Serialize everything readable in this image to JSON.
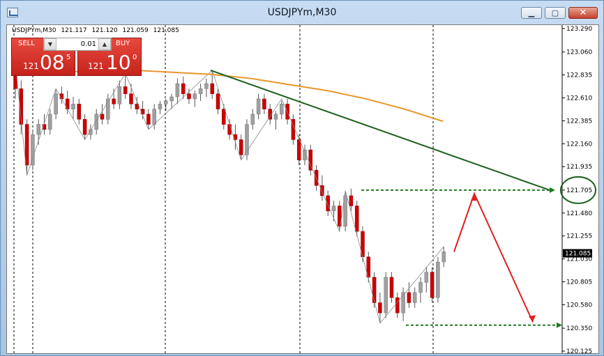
{
  "window": {
    "title": "USDJPYm,M30",
    "minimize_glyph": "▁",
    "maximize_glyph": "▢",
    "close_glyph": "✕"
  },
  "symbol_info": {
    "label": "USDJPYm,M30",
    "open": "121.117",
    "high": "121.120",
    "low": "121.059",
    "close": "121.085"
  },
  "trade_panel": {
    "sell_label": "SELL",
    "buy_label": "BUY",
    "lot_value": "0.01",
    "sell_price": {
      "prefix": "121",
      "main": "08",
      "sup": "5"
    },
    "buy_price": {
      "prefix": "121",
      "main": "10",
      "sup": "0"
    }
  },
  "colors": {
    "bull": "#a0a0a0",
    "bear": "#cc0000",
    "wick": "#555555",
    "ma": "#e8962a",
    "trendline": "#1d5e1d",
    "level": "#1f7a1f",
    "forecast": "#e02020",
    "price_tag": "#000000"
  },
  "chart_data": {
    "type": "candlestick",
    "y_axis": {
      "ylim": [
        120.125,
        123.29
      ],
      "ticks": [
        "123.290",
        "123.060",
        "122.835",
        "122.610",
        "122.385",
        "122.160",
        "121.935",
        "121.705",
        "121.480",
        "121.255",
        "121.030",
        "120.805",
        "120.580",
        "120.350",
        "120.125"
      ]
    },
    "current_price": "121.085",
    "candles": [
      [
        122.85,
        122.95,
        122.6,
        122.7
      ],
      [
        122.7,
        122.78,
        122.25,
        122.35
      ],
      [
        122.35,
        122.4,
        121.85,
        121.95
      ],
      [
        121.95,
        122.3,
        121.9,
        122.25
      ],
      [
        122.25,
        122.4,
        122.15,
        122.35
      ],
      [
        122.35,
        122.45,
        122.25,
        122.3
      ],
      [
        122.3,
        122.5,
        122.25,
        122.45
      ],
      [
        122.45,
        122.7,
        122.4,
        122.65
      ],
      [
        122.65,
        122.72,
        122.55,
        122.6
      ],
      [
        122.6,
        122.68,
        122.45,
        122.5
      ],
      [
        122.5,
        122.62,
        122.4,
        122.55
      ],
      [
        122.55,
        122.6,
        122.35,
        122.4
      ],
      [
        122.4,
        122.45,
        122.2,
        122.25
      ],
      [
        122.25,
        122.35,
        122.2,
        122.3
      ],
      [
        122.3,
        122.5,
        122.25,
        122.45
      ],
      [
        122.45,
        122.55,
        122.35,
        122.4
      ],
      [
        122.4,
        122.65,
        122.35,
        122.6
      ],
      [
        122.6,
        122.7,
        122.5,
        122.55
      ],
      [
        122.55,
        122.78,
        122.5,
        122.72
      ],
      [
        122.72,
        122.85,
        122.6,
        122.65
      ],
      [
        122.65,
        122.75,
        122.5,
        122.55
      ],
      [
        122.55,
        122.62,
        122.45,
        122.5
      ],
      [
        122.5,
        122.58,
        122.4,
        122.45
      ],
      [
        122.45,
        122.5,
        122.3,
        122.35
      ],
      [
        122.35,
        122.55,
        122.3,
        122.5
      ],
      [
        122.5,
        122.58,
        122.45,
        122.55
      ],
      [
        122.55,
        122.6,
        122.48,
        122.58
      ],
      [
        122.58,
        122.65,
        122.5,
        122.62
      ],
      [
        122.62,
        122.8,
        122.55,
        122.75
      ],
      [
        122.75,
        122.82,
        122.6,
        122.65
      ],
      [
        122.65,
        122.7,
        122.55,
        122.6
      ],
      [
        122.6,
        122.68,
        122.52,
        122.65
      ],
      [
        122.65,
        122.75,
        122.58,
        122.7
      ],
      [
        122.7,
        122.8,
        122.62,
        122.75
      ],
      [
        122.75,
        122.88,
        122.6,
        122.65
      ],
      [
        122.65,
        122.7,
        122.45,
        122.5
      ],
      [
        122.5,
        122.55,
        122.3,
        122.35
      ],
      [
        122.35,
        122.4,
        122.2,
        122.25
      ],
      [
        122.25,
        122.35,
        122.1,
        122.2
      ],
      [
        122.2,
        122.25,
        122.0,
        122.05
      ],
      [
        122.05,
        122.4,
        122.0,
        122.35
      ],
      [
        122.35,
        122.5,
        122.3,
        122.45
      ],
      [
        122.45,
        122.65,
        122.4,
        122.6
      ],
      [
        122.6,
        122.65,
        122.45,
        122.5
      ],
      [
        122.5,
        122.55,
        122.35,
        122.4
      ],
      [
        122.4,
        122.48,
        122.3,
        122.45
      ],
      [
        122.45,
        122.58,
        122.4,
        122.55
      ],
      [
        122.55,
        122.6,
        122.35,
        122.4
      ],
      [
        122.4,
        122.45,
        122.15,
        122.2
      ],
      [
        122.2,
        122.25,
        121.95,
        122.0
      ],
      [
        122.0,
        122.15,
        121.95,
        122.1
      ],
      [
        122.1,
        122.15,
        121.85,
        121.9
      ],
      [
        121.9,
        121.95,
        121.7,
        121.75
      ],
      [
        121.75,
        121.85,
        121.6,
        121.65
      ],
      [
        121.65,
        121.7,
        121.45,
        121.5
      ],
      [
        121.5,
        121.6,
        121.4,
        121.55
      ],
      [
        121.55,
        121.6,
        121.3,
        121.35
      ],
      [
        121.35,
        121.7,
        121.3,
        121.65
      ],
      [
        121.65,
        121.72,
        121.5,
        121.55
      ],
      [
        121.55,
        121.6,
        121.25,
        121.3
      ],
      [
        121.3,
        121.35,
        121.0,
        121.05
      ],
      [
        121.05,
        121.1,
        120.8,
        120.85
      ],
      [
        120.85,
        120.9,
        120.55,
        120.6
      ],
      [
        120.6,
        120.7,
        120.4,
        120.5
      ],
      [
        120.5,
        120.9,
        120.45,
        120.85
      ],
      [
        120.85,
        120.9,
        120.6,
        120.65
      ],
      [
        120.65,
        120.7,
        120.45,
        120.5
      ],
      [
        120.5,
        120.75,
        120.42,
        120.7
      ],
      [
        120.7,
        120.8,
        120.55,
        120.6
      ],
      [
        120.6,
        120.75,
        120.55,
        120.7
      ],
      [
        120.7,
        120.85,
        120.6,
        120.8
      ],
      [
        120.8,
        120.95,
        120.7,
        120.9
      ],
      [
        120.9,
        120.95,
        120.6,
        120.65
      ],
      [
        120.65,
        121.05,
        120.6,
        121.0
      ],
      [
        121.0,
        121.15,
        120.95,
        121.1
      ]
    ],
    "moving_average": [
      [
        122.83,
        122.85
      ],
      [
        122.85,
        122.87
      ],
      [
        122.89,
        122.88
      ],
      [
        122.88,
        122.87
      ],
      [
        122.86,
        122.84
      ],
      [
        122.84,
        122.81
      ],
      [
        122.8,
        122.76
      ],
      [
        122.74,
        122.7
      ],
      [
        122.68,
        122.63
      ],
      [
        122.6,
        122.55
      ],
      [
        122.5,
        122.44
      ],
      [
        122.38,
        122.32
      ]
    ],
    "trendline": {
      "from": [
        122.88
      ],
      "to": [
        121.705
      ]
    },
    "levels": [
      "121.705",
      "120.380"
    ],
    "forecast": [
      "121.10",
      "121.67",
      "120.41"
    ]
  }
}
